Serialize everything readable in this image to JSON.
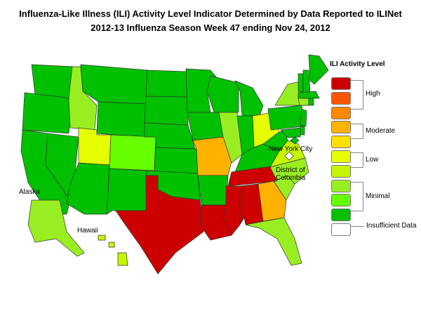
{
  "title_line1": "Influenza-Like Illness (ILI) Activity Level Indicator Determined by Data Reported to ILINet",
  "title_line2": "2012-13  Influenza Season Week  47 ending Nov 24, 2012",
  "map_labels": {
    "nyc": "New York City",
    "dc": "District of Columbia",
    "alaska": "Alaska",
    "hawaii": "Hawaii"
  },
  "legend": {
    "title": "ILI Activity Level",
    "levels": [
      {
        "level": 10,
        "color": "#cc0000"
      },
      {
        "level": 9,
        "color": "#ff5500"
      },
      {
        "level": 8,
        "color": "#ff8800"
      },
      {
        "level": 7,
        "color": "#ffb300"
      },
      {
        "level": 6,
        "color": "#ffe000"
      },
      {
        "level": 5,
        "color": "#e6ff00"
      },
      {
        "level": 4,
        "color": "#c6f500"
      },
      {
        "level": 3,
        "color": "#99ee22"
      },
      {
        "level": 2,
        "color": "#66ff00"
      },
      {
        "level": 1,
        "color": "#00c000"
      },
      {
        "level": 0,
        "color": "#ffffff"
      }
    ],
    "groups": {
      "high": "High",
      "moderate": "Moderate",
      "low": "Low",
      "minimal": "Minimal",
      "insufficient": "Insufficient Data"
    }
  },
  "states": {
    "WA": 1,
    "OR": 1,
    "CA": 1,
    "NV": 1,
    "ID": 3,
    "MT": 1,
    "WY": 1,
    "UT": 5,
    "CO": 2,
    "AZ": 1,
    "NM": 1,
    "ND": 1,
    "SD": 1,
    "NE": 1,
    "KS": 1,
    "OK": 1,
    "TX": 10,
    "MN": 1,
    "IA": 1,
    "MO": 7,
    "AR": 1,
    "LA": 10,
    "WI": 1,
    "IL": 3,
    "MI": 1,
    "IN": 1,
    "OH": 5,
    "KY": 1,
    "TN": 10,
    "MS": 10,
    "AL": 10,
    "GA": 7,
    "FL": 3,
    "SC": 3,
    "NC": 3,
    "VA": 4,
    "WV": 1,
    "PA": 1,
    "NY": 3,
    "VT": 1,
    "NH": 1,
    "ME": 1,
    "MA": 1,
    "CT": 3,
    "RI": 1,
    "NJ": 1,
    "DE": 1,
    "MD": 1,
    "DC": 0,
    "NYC": 1,
    "AK": 3,
    "HI": 4
  }
}
